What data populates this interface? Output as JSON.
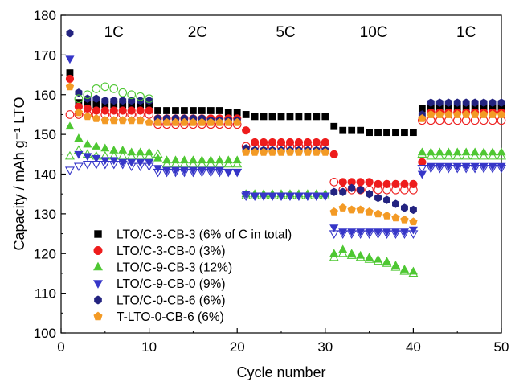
{
  "chart_data": {
    "type": "scatter",
    "xlabel": "Cycle number",
    "ylabel": "Capacity / mAh g⁻¹ LTO",
    "xlim": [
      0,
      50
    ],
    "ylim": [
      100,
      180
    ],
    "x_ticks": [
      0,
      10,
      20,
      30,
      40,
      50
    ],
    "y_ticks": [
      100,
      110,
      120,
      130,
      140,
      150,
      160,
      170,
      180
    ],
    "rate_labels": [
      {
        "text": "1C",
        "x": 6
      },
      {
        "text": "2C",
        "x": 15.5
      },
      {
        "text": "5C",
        "x": 25.5
      },
      {
        "text": "10C",
        "x": 35.5
      },
      {
        "text": "1C",
        "x": 46
      }
    ],
    "legend_position": "lower-left",
    "series": [
      {
        "name": "LTO/C-3-CB-3 (6% of C in total)",
        "color": "#000000",
        "marker": "square",
        "filled": [
          165.5,
          158,
          157.5,
          157.5,
          157.5,
          157.5,
          157.5,
          157.5,
          157.5,
          157.5,
          156,
          156,
          156,
          156,
          156,
          156,
          156,
          156,
          155.5,
          155.5,
          155,
          154.5,
          154.5,
          154.5,
          154.5,
          154.5,
          154.5,
          154.5,
          154.5,
          154.5,
          152,
          151,
          151,
          151,
          150.5,
          150.5,
          150.5,
          150.5,
          150.5,
          150.5,
          156.5,
          156.5,
          156.5,
          156.5,
          156.5,
          156.5,
          156.5,
          156.5,
          156.5,
          156.5
        ],
        "hollow": [
          null,
          null,
          null,
          null,
          null,
          null,
          null,
          null,
          null,
          null,
          null,
          null,
          null,
          null,
          null,
          null,
          null,
          null,
          null,
          null,
          null,
          null,
          null,
          null,
          null,
          null,
          null,
          null,
          null,
          null,
          null,
          null,
          null,
          null,
          null,
          null,
          null,
          null,
          null,
          null,
          null,
          null,
          null,
          null,
          null,
          null,
          null,
          null,
          null,
          null
        ]
      },
      {
        "name": "LTO/C-3-CB-0 (3%)",
        "color": "#ee1c1c",
        "marker": "circle",
        "filled": [
          164,
          157,
          156.5,
          156,
          156,
          156,
          156,
          156,
          156,
          156,
          154,
          154,
          154,
          154,
          154,
          154,
          154,
          154,
          154,
          154,
          151,
          148,
          148,
          148,
          148,
          148,
          148,
          148,
          148,
          148,
          145,
          138,
          138,
          138,
          138,
          137.5,
          137.5,
          137.5,
          137.5,
          137.5,
          143,
          155.5,
          155.5,
          155.5,
          155.5,
          155.5,
          155.5,
          155.5,
          155.5,
          155.5
        ],
        "hollow": [
          155,
          155,
          155,
          155,
          155,
          155,
          155,
          155,
          155,
          155,
          152.5,
          152.5,
          152.5,
          152.5,
          152.5,
          152.5,
          152.5,
          152.5,
          152.5,
          152.5,
          147,
          147,
          147,
          147,
          147,
          147,
          147,
          147,
          147,
          147,
          138,
          136,
          136,
          136,
          136,
          136,
          136,
          136,
          136,
          136,
          153.5,
          153.5,
          153.5,
          153.5,
          153.5,
          153.5,
          153.5,
          153.5,
          153.5,
          153.5
        ]
      },
      {
        "name": "LTO/C-9-CB-3 (12%)",
        "color": "#4ec732",
        "marker": "triangle-up",
        "filled": [
          152,
          149,
          147.5,
          147,
          146.5,
          146,
          146,
          145.5,
          145.5,
          145.5,
          144,
          143.5,
          143.5,
          143.5,
          143.5,
          143.5,
          143.5,
          143.5,
          143.5,
          143.5,
          135,
          135,
          135,
          135,
          135,
          135,
          135,
          135,
          135,
          135,
          120,
          121,
          120,
          119.5,
          119,
          118.5,
          118,
          117,
          116,
          115.5,
          145.5,
          145.5,
          145.5,
          145.5,
          145.5,
          145.5,
          145.5,
          145.5,
          145.5,
          145.5
        ],
        "hollow": [
          144.5,
          146,
          145,
          144.5,
          144.5,
          144.5,
          144.5,
          144.5,
          144.5,
          144.5,
          145,
          142.5,
          142.5,
          142.5,
          142.5,
          142.5,
          142.5,
          142.5,
          142.5,
          142.5,
          134.5,
          134.5,
          134.5,
          134.5,
          134.5,
          134.5,
          134.5,
          134.5,
          134.5,
          134.5,
          119,
          120,
          119.5,
          119,
          118.5,
          118,
          117.5,
          116.5,
          115.5,
          115,
          145,
          144.5,
          144.5,
          144.5,
          144.5,
          144.5,
          144.5,
          144.5,
          144.5,
          144.5
        ]
      },
      {
        "name": "LTO/C-9-CB-0 (9%)",
        "color": "#3636c8",
        "marker": "triangle-down",
        "filled": [
          169,
          145,
          144.5,
          144,
          143.5,
          143.5,
          143,
          143,
          143,
          143,
          141.5,
          141,
          141,
          141,
          141,
          141,
          141,
          141,
          140.5,
          140.5,
          135,
          134.5,
          134.5,
          134.5,
          134.5,
          134.5,
          134.5,
          134.5,
          134.5,
          134.5,
          126.5,
          125.5,
          125.5,
          125.5,
          125.5,
          125.5,
          125.5,
          125.5,
          125.5,
          126,
          140,
          142,
          142,
          142,
          142,
          142,
          142,
          142,
          142,
          142
        ],
        "hollow": [
          141,
          142,
          142.5,
          142.5,
          142.5,
          142.5,
          142.5,
          142,
          142,
          142,
          140.5,
          140.5,
          140.5,
          140.5,
          140.5,
          140.5,
          140.5,
          140.5,
          140.5,
          140.5,
          134.5,
          134.5,
          134.5,
          134.5,
          134.5,
          134.5,
          134.5,
          134.5,
          134.5,
          134.5,
          125,
          125,
          125,
          125,
          125,
          125,
          125,
          125,
          125,
          125,
          141.5,
          141.5,
          141.5,
          141.5,
          141.5,
          141.5,
          141.5,
          141.5,
          141.5,
          141.5
        ]
      },
      {
        "name": "LTO/C-0-CB-6 (6%)",
        "color": "#232380",
        "marker": "hexagon",
        "filled": [
          175.5,
          160.5,
          159,
          159,
          158.5,
          158.5,
          158.5,
          158.5,
          158.5,
          158.5,
          154,
          154,
          154,
          154,
          154,
          154,
          153.5,
          153.5,
          153.5,
          153.5,
          146.5,
          146,
          146,
          146,
          146,
          146,
          146,
          146,
          146,
          146,
          135.5,
          135.5,
          136.5,
          136,
          135,
          134,
          133.5,
          132.5,
          131.5,
          131,
          155,
          158,
          158,
          158,
          158,
          158,
          158,
          158,
          158,
          158
        ],
        "hollow": [
          null,
          null,
          null,
          null,
          null,
          null,
          null,
          null,
          null,
          null,
          null,
          null,
          null,
          null,
          null,
          null,
          null,
          null,
          null,
          null,
          null,
          null,
          null,
          null,
          null,
          null,
          null,
          null,
          null,
          null,
          null,
          null,
          null,
          null,
          null,
          null,
          null,
          null,
          null,
          null,
          null,
          null,
          null,
          null,
          null,
          null,
          null,
          null,
          null,
          null
        ]
      },
      {
        "name": "T-LTO-0-CB-6 (6%)",
        "color": "#f39a25",
        "marker": "pentagon",
        "filled": [
          162,
          155.5,
          154.5,
          154,
          153.5,
          153.5,
          153.5,
          153.5,
          153.5,
          153,
          153,
          153,
          153,
          153,
          153,
          153,
          153,
          153,
          153,
          153,
          145.5,
          145.5,
          145.5,
          145.5,
          145.5,
          145.5,
          145.5,
          145.5,
          145.5,
          145.5,
          130.5,
          131.5,
          131,
          131,
          130.5,
          130,
          129.5,
          129,
          128.5,
          128,
          154,
          155,
          155,
          155,
          155,
          155,
          155,
          155,
          155,
          155
        ],
        "hollow": [
          null,
          null,
          null,
          null,
          null,
          null,
          null,
          null,
          null,
          null,
          null,
          null,
          null,
          null,
          null,
          null,
          null,
          null,
          null,
          null,
          null,
          null,
          null,
          null,
          null,
          null,
          null,
          null,
          null,
          null,
          null,
          null,
          null,
          null,
          null,
          null,
          null,
          null,
          null,
          null,
          null,
          null,
          null,
          null,
          null,
          null,
          null,
          null,
          null,
          null
        ]
      },
      {
        "name": "",
        "color": "#4ec732",
        "marker": "circle",
        "filled": [
          null,
          null,
          null,
          null,
          null,
          null,
          null,
          null,
          null,
          null,
          null,
          null,
          null,
          null,
          null,
          null,
          null,
          null,
          null,
          null,
          null,
          null,
          null,
          null,
          null,
          null,
          null,
          null,
          null,
          null,
          null,
          null,
          null,
          null,
          null,
          null,
          null,
          null,
          null,
          null,
          null,
          null,
          null,
          null,
          null,
          null,
          null,
          null,
          null,
          null
        ],
        "hollow": [
          null,
          159,
          160,
          161.5,
          162,
          161.5,
          160.5,
          160,
          159.5,
          159,
          null,
          null,
          null,
          null,
          null,
          null,
          null,
          null,
          null,
          null,
          null,
          null,
          null,
          null,
          null,
          null,
          null,
          null,
          null,
          null,
          null,
          null,
          null,
          null,
          null,
          null,
          null,
          null,
          null,
          null,
          null,
          null,
          null,
          null,
          null,
          null,
          null,
          null,
          null,
          null
        ]
      }
    ]
  }
}
